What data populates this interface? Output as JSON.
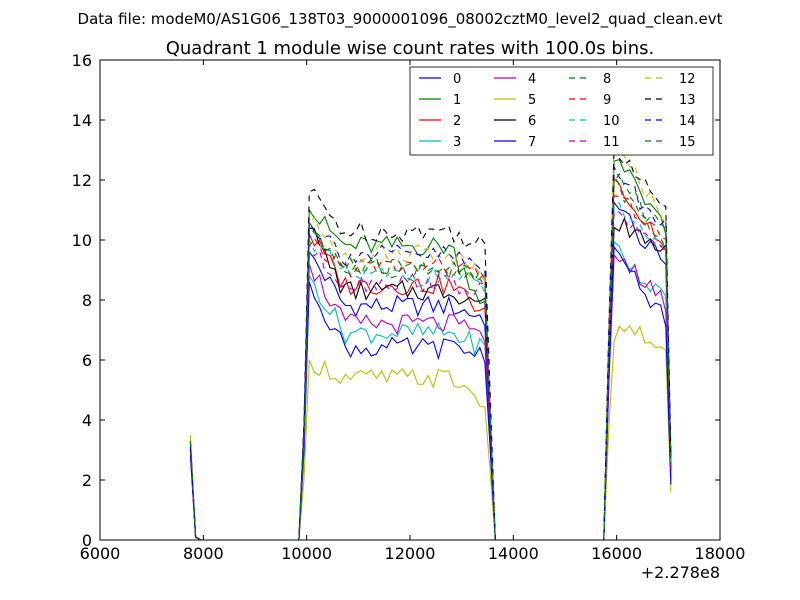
{
  "suptitle": "Data file: modeM0/AS1G06_138T03_9000001096_08002cztM0_level2_quad_clean.evt",
  "chart_data": {
    "type": "line",
    "title": "Quadrant 1 module wise count rates with 100.0s bins.",
    "xlabel": "",
    "ylabel": "",
    "x_offset_label": "+2.278e8",
    "xlim": [
      6000,
      18000
    ],
    "ylim": [
      0,
      16
    ],
    "xticks": [
      6000,
      8000,
      10000,
      12000,
      14000,
      16000,
      18000
    ],
    "yticks": [
      0,
      2,
      4,
      6,
      8,
      10,
      12,
      14,
      16
    ],
    "grid": false,
    "legend": {
      "placement": "top-right",
      "columns": 4
    },
    "segments": [
      {
        "x_start": 7750,
        "x_end": 7850,
        "step": 100
      },
      {
        "x_start": 7950,
        "x_end": 9850,
        "step": 100,
        "zero": true
      },
      {
        "x_start": 9950,
        "x_end": 13550,
        "step": 100
      },
      {
        "x_start": 13650,
        "x_end": 15750,
        "step": 100,
        "zero": true
      },
      {
        "x_start": 15850,
        "x_end": 17050,
        "step": 100
      }
    ],
    "series": [
      {
        "name": "0",
        "color": "#0000ff",
        "style": "solid",
        "peak": [
          3.2,
          0.1
        ],
        "p1_start": 9.6,
        "p1_level": 7.8,
        "p1_end": 7.4,
        "p3_start": 11.4,
        "p3_level": 10.2,
        "p3_end": 9.2
      },
      {
        "name": "1",
        "color": "#008000",
        "style": "solid",
        "peak": [
          3.3,
          0.1
        ],
        "p1_start": 11.0,
        "p1_level": 9.8,
        "p1_end": 7.8,
        "p3_start": 12.6,
        "p3_level": 11.8,
        "p3_end": 10.4
      },
      {
        "name": "2",
        "color": "#ff0000",
        "style": "solid",
        "peak": [
          3.0,
          0.1
        ],
        "p1_start": 10.2,
        "p1_level": 8.5,
        "p1_end": 7.6,
        "p3_start": 12.0,
        "p3_level": 11.0,
        "p3_end": 9.8
      },
      {
        "name": "3",
        "color": "#00bfbf",
        "style": "solid",
        "peak": [
          3.1,
          0.1
        ],
        "p1_start": 8.8,
        "p1_level": 6.9,
        "p1_end": 6.4,
        "p3_start": 9.7,
        "p3_level": 9.0,
        "p3_end": 8.1
      },
      {
        "name": "4",
        "color": "#bf00bf",
        "style": "solid",
        "peak": [
          3.0,
          0.1
        ],
        "p1_start": 9.2,
        "p1_level": 7.2,
        "p1_end": 6.8,
        "p3_start": 9.6,
        "p3_level": 8.8,
        "p3_end": 7.9
      },
      {
        "name": "5",
        "color": "#bfbf00",
        "style": "solid",
        "peak": [
          3.4,
          0.1
        ],
        "p1_start": 6.0,
        "p1_level": 5.4,
        "p1_end": 4.6,
        "p3_start": 6.9,
        "p3_level": 7.0,
        "p3_end": 6.4
      },
      {
        "name": "6",
        "color": "#000000",
        "style": "solid",
        "peak": [
          3.1,
          0.1
        ],
        "p1_start": 10.4,
        "p1_level": 8.3,
        "p1_end": 7.9,
        "p3_start": 10.6,
        "p3_level": 10.2,
        "p3_end": 9.6
      },
      {
        "name": "7",
        "color": "#0000ff",
        "style": "solid",
        "peak": [
          2.8,
          0.1
        ],
        "p1_start": 8.6,
        "p1_level": 6.4,
        "p1_end": 6.2,
        "p3_start": 9.8,
        "p3_level": 8.6,
        "p3_end": 7.4
      },
      {
        "name": "8",
        "color": "#008000",
        "style": "dashed",
        "peak": [
          3.2,
          0.1
        ],
        "p1_start": 10.6,
        "p1_level": 9.0,
        "p1_end": 8.6,
        "p3_start": 12.0,
        "p3_level": 10.8,
        "p3_end": 9.8
      },
      {
        "name": "9",
        "color": "#ff0000",
        "style": "dashed",
        "peak": [
          3.0,
          0.1
        ],
        "p1_start": 9.8,
        "p1_level": 9.1,
        "p1_end": 8.8,
        "p3_start": 11.6,
        "p3_level": 10.9,
        "p3_end": 10.0
      },
      {
        "name": "10",
        "color": "#00bfbf",
        "style": "dashed",
        "peak": [
          3.2,
          0.1
        ],
        "p1_start": 10.0,
        "p1_level": 8.8,
        "p1_end": 8.4,
        "p3_start": 11.4,
        "p3_level": 10.6,
        "p3_end": 9.8
      },
      {
        "name": "11",
        "color": "#bf00bf",
        "style": "dashed",
        "peak": [
          3.0,
          0.1
        ],
        "p1_start": 9.6,
        "p1_level": 8.6,
        "p1_end": 8.2,
        "p3_start": 11.0,
        "p3_level": 10.4,
        "p3_end": 9.4
      },
      {
        "name": "12",
        "color": "#bfbf00",
        "style": "dashed",
        "peak": [
          3.5,
          0.1
        ],
        "p1_start": 10.6,
        "p1_level": 9.6,
        "p1_end": 8.8,
        "p3_start": 13.0,
        "p3_level": 12.0,
        "p3_end": 10.8
      },
      {
        "name": "13",
        "color": "#000000",
        "style": "dashed",
        "peak": [
          3.3,
          0.1
        ],
        "p1_start": 11.6,
        "p1_level": 10.3,
        "p1_end": 9.8,
        "p3_start": 13.0,
        "p3_level": 12.2,
        "p3_end": 11.2
      },
      {
        "name": "14",
        "color": "#0000ff",
        "style": "dashed",
        "peak": [
          3.1,
          0.1
        ],
        "p1_start": 10.6,
        "p1_level": 9.5,
        "p1_end": 9.0,
        "p3_start": 12.4,
        "p3_level": 11.4,
        "p3_end": 10.4
      },
      {
        "name": "15",
        "color": "#008000",
        "style": "dashed",
        "peak": [
          3.3,
          0.1
        ],
        "p1_start": 10.4,
        "p1_level": 9.1,
        "p1_end": 8.6,
        "p3_start": 12.2,
        "p3_level": 11.2,
        "p3_end": 10.2
      }
    ]
  }
}
